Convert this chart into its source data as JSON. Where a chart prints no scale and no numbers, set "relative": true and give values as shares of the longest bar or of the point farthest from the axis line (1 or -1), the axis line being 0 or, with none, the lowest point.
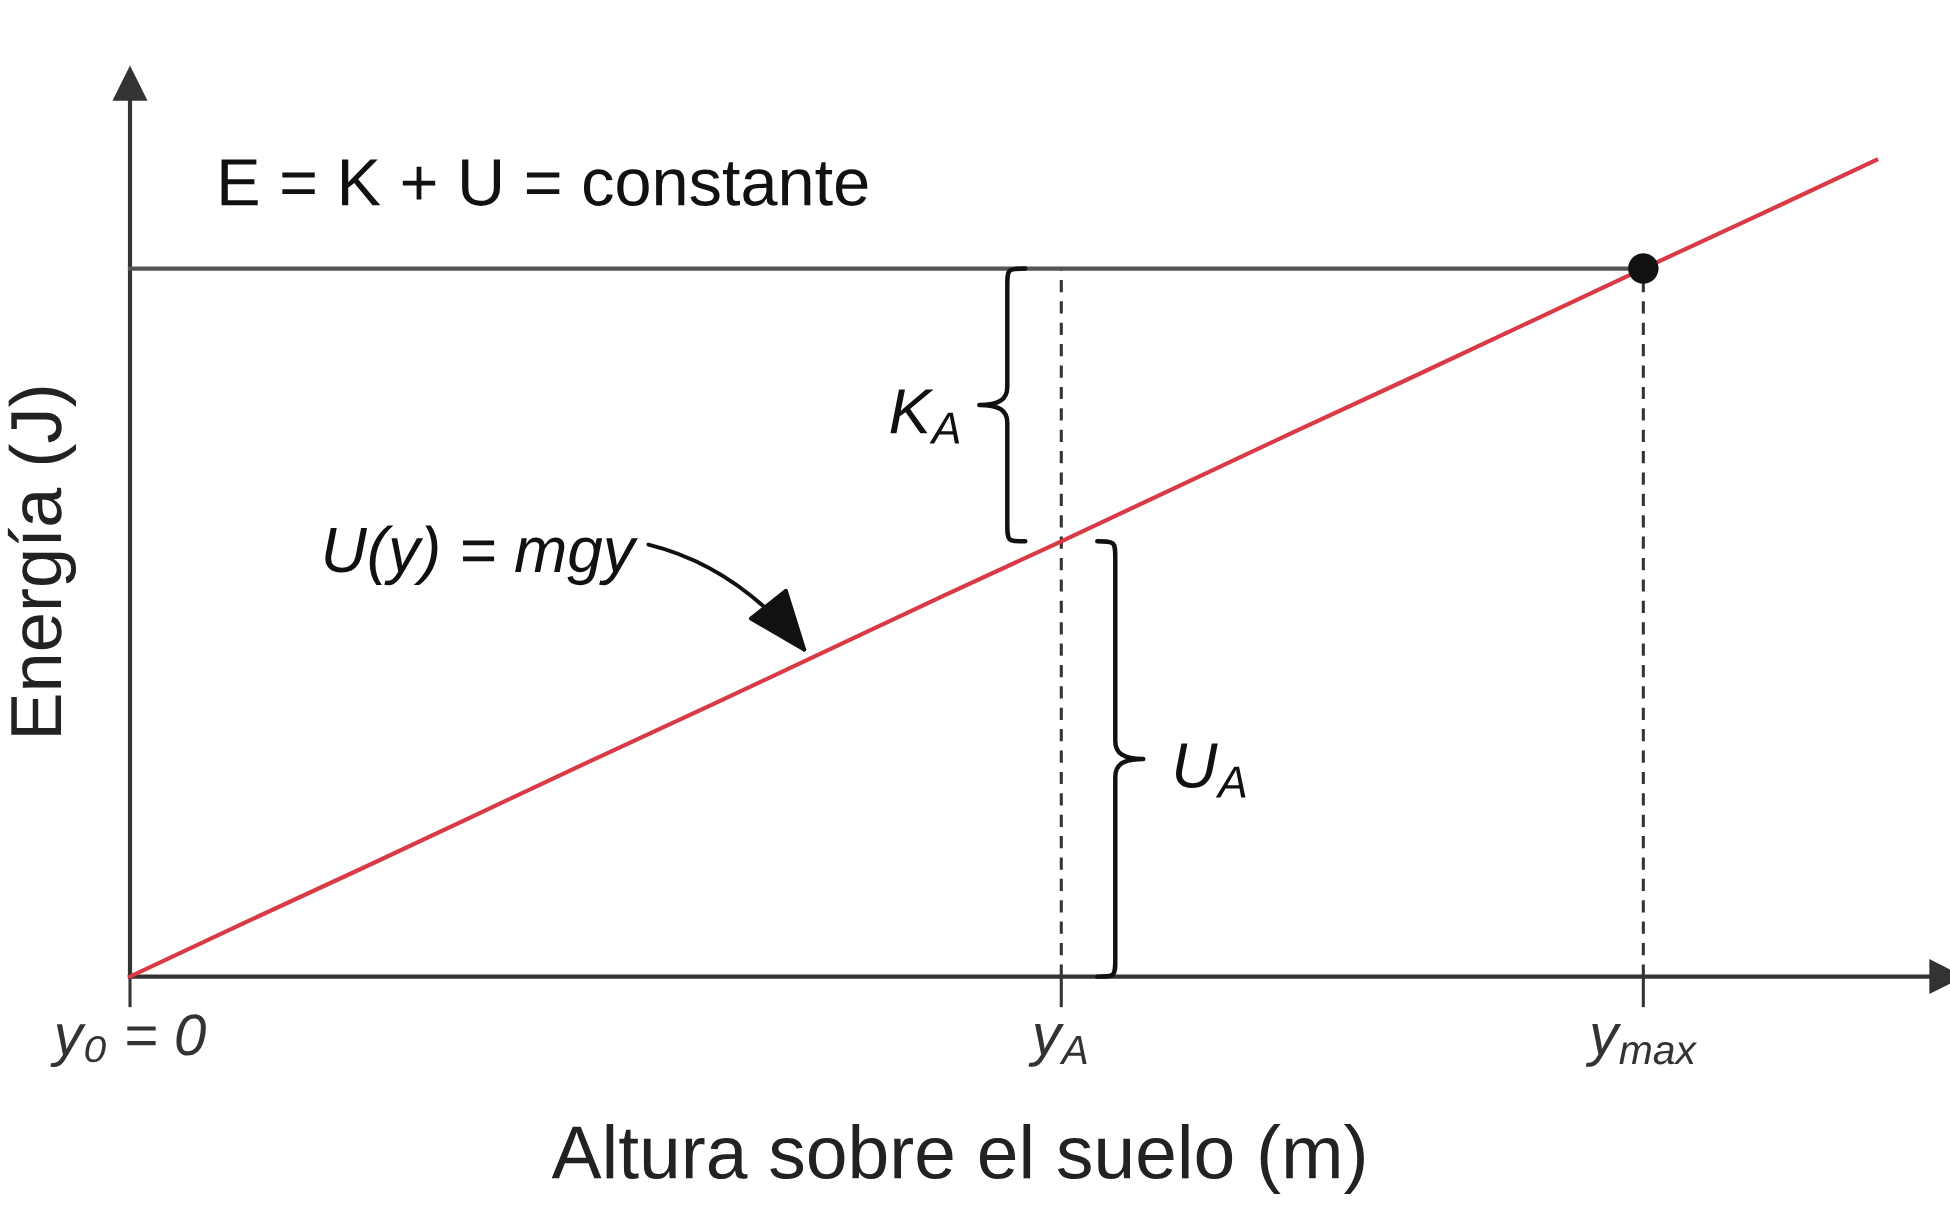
{
  "chart_data": {
    "type": "line",
    "relative": true,
    "xlabel": "Altura sobre el suelo (m)",
    "ylabel": "Energía (J)",
    "categories": [
      "y₀ = 0",
      null,
      null,
      null,
      null,
      null,
      null,
      null,
      "y$_{A}$",
      null,
      null,
      null,
      null,
      "y$_{max}$",
      null,
      null
    ],
    "series": [
      {
        "name": "U(y) = mgy",
        "color": "#d93a46",
        "values": [
          0,
          0.067,
          0.133,
          0.2,
          0.267,
          0.333,
          0.4,
          0.467,
          0.533,
          0.6,
          0.667,
          0.733,
          0.8,
          0.867,
          0.933,
          1
        ]
      },
      {
        "name": "E = K + U = constante",
        "color": "#555555",
        "values": [
          0.867,
          0.867,
          0.867,
          0.867,
          0.867,
          0.867,
          0.867,
          0.867,
          0.867,
          0.867,
          0.867,
          0.867,
          0.867,
          0.867,
          null,
          null
        ]
      },
      {
        "type": "scatter",
        "color": "#111111",
        "marker": "circle",
        "values": [
          null,
          null,
          null,
          null,
          null,
          null,
          null,
          null,
          null,
          null,
          null,
          null,
          null,
          0.867,
          null,
          null
        ]
      }
    ],
    "ref_lines": [
      {
        "axis": "x",
        "value": "y$_{A}$",
        "color": "#333333",
        "line_style": "dashed"
      },
      {
        "axis": "x",
        "value": "y$_{max}$",
        "color": "#333333",
        "line_style": "dashed"
      }
    ],
    "annotations": [
      "K$_{A}$",
      "U$_{A}$"
    ]
  }
}
